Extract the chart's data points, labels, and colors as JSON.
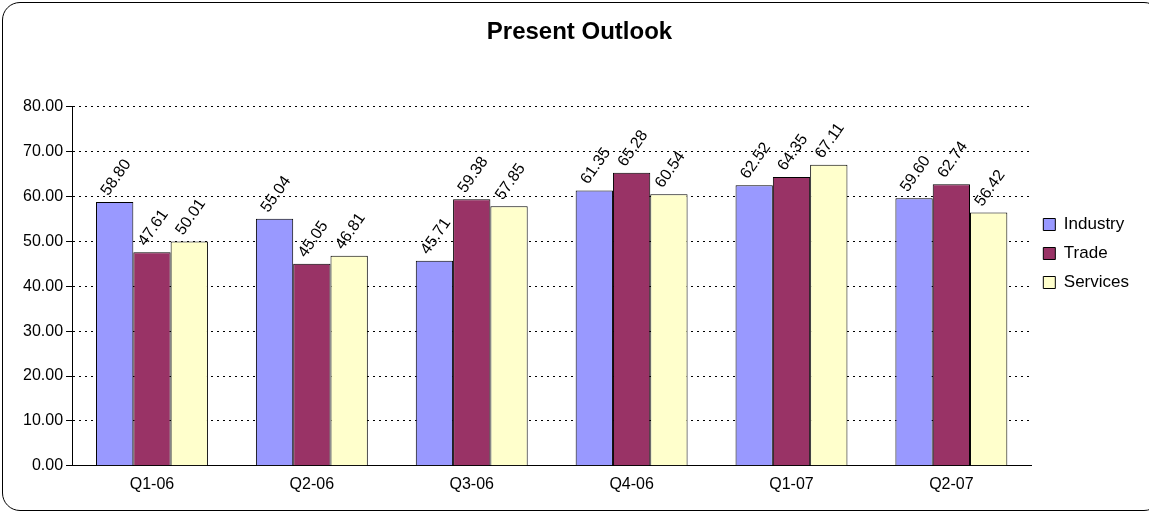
{
  "chart_data": {
    "type": "bar",
    "title": "Present Outlook",
    "categories": [
      "Q1-06",
      "Q2-06",
      "Q3-06",
      "Q4-06",
      "Q1-07",
      "Q2-07"
    ],
    "series": [
      {
        "name": "Industry",
        "color": "#9999ff",
        "values": [
          58.8,
          55.04,
          45.71,
          61.35,
          62.52,
          59.6
        ],
        "value_labels": [
          "58.80",
          "55.04",
          "45.71",
          "61.35",
          "62.52",
          "59.60"
        ]
      },
      {
        "name": "Trade",
        "color": "#993366",
        "values": [
          47.61,
          45.05,
          59.38,
          65.28,
          64.35,
          62.74
        ],
        "value_labels": [
          "47.61",
          "45.05",
          "59.38",
          "65.28",
          "64.35",
          "62.74"
        ]
      },
      {
        "name": "Services",
        "color": "#ffffcc",
        "values": [
          50.01,
          46.81,
          57.85,
          60.54,
          67.11,
          56.42
        ],
        "value_labels": [
          "50.01",
          "46.81",
          "57.85",
          "60.54",
          "67.11",
          "56.42"
        ]
      }
    ],
    "ylim": [
      0,
      80
    ],
    "yticks": [
      {
        "value": 0,
        "label": "0.00"
      },
      {
        "value": 10,
        "label": "10.00"
      },
      {
        "value": 20,
        "label": "20.00"
      },
      {
        "value": 30,
        "label": "30.00"
      },
      {
        "value": 40,
        "label": "40.00"
      },
      {
        "value": 50,
        "label": "50.00"
      },
      {
        "value": 60,
        "label": "60.00"
      },
      {
        "value": 70,
        "label": "70.00"
      },
      {
        "value": 80,
        "label": "80.00"
      }
    ],
    "grid": "y",
    "legend": "right"
  }
}
